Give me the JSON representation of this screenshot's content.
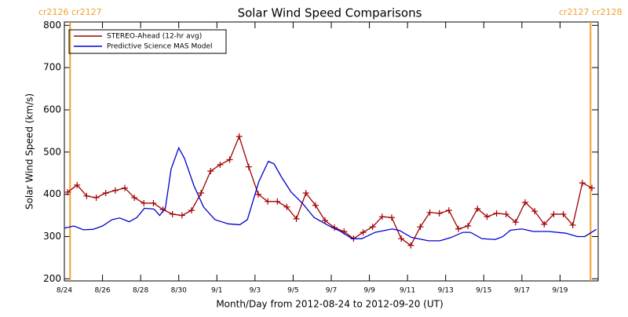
{
  "chart_data": {
    "type": "line",
    "title": "Solar Wind Speed Comparisons",
    "xlabel": "Month/Day from 2012-08-24 to 2012-09-20 (UT)",
    "ylabel": "Solar Wind Speed (km/s)",
    "xlim": [
      0,
      28
    ],
    "ylim": [
      195,
      808
    ],
    "xticks": [
      {
        "value": 0,
        "label": "8/24"
      },
      {
        "value": 2,
        "label": "8/26"
      },
      {
        "value": 4,
        "label": "8/28"
      },
      {
        "value": 6,
        "label": "8/30"
      },
      {
        "value": 8,
        "label": "9/1"
      },
      {
        "value": 10,
        "label": "9/3"
      },
      {
        "value": 12,
        "label": "9/5"
      },
      {
        "value": 14,
        "label": "9/7"
      },
      {
        "value": 16,
        "label": "9/9"
      },
      {
        "value": 18,
        "label": "9/11"
      },
      {
        "value": 20,
        "label": "9/13"
      },
      {
        "value": 22,
        "label": "9/15"
      },
      {
        "value": 24,
        "label": "9/17"
      },
      {
        "value": 26,
        "label": "9/19"
      }
    ],
    "yticks": [
      200,
      300,
      400,
      500,
      600,
      700,
      800
    ],
    "legend": "upper left",
    "annotations": [
      {
        "text": "cr2126 cr2127",
        "x": 0.3,
        "color": "#f0a030"
      },
      {
        "text": "cr2127 cr2128",
        "x": 27.6,
        "color": "#f0a030"
      }
    ],
    "series": [
      {
        "name": "STEREO-Ahead (12-hr avg)",
        "color": "#a00000",
        "markers": true,
        "x": [
          0.17,
          0.67,
          1.17,
          1.67,
          2.17,
          2.67,
          3.17,
          3.67,
          4.17,
          4.67,
          5.17,
          5.67,
          6.17,
          6.67,
          7.17,
          7.67,
          8.17,
          8.67,
          9.17,
          9.67,
          10.17,
          10.67,
          11.17,
          11.67,
          12.17,
          12.67,
          13.17,
          13.67,
          14.17,
          14.67,
          15.17,
          15.67,
          16.17,
          16.67,
          17.17,
          17.67,
          18.17,
          18.67,
          19.17,
          19.67,
          20.17,
          20.67,
          21.17,
          21.67,
          22.17,
          22.67,
          23.17,
          23.67,
          24.17,
          24.67,
          25.17,
          25.67,
          26.17,
          26.67,
          27.17,
          27.67
        ],
        "values": [
          405,
          422,
          396,
          392,
          403,
          409,
          415,
          392,
          379,
          379,
          364,
          353,
          350,
          362,
          403,
          455,
          470,
          482,
          537,
          465,
          400,
          383,
          383,
          370,
          342,
          403,
          374,
          338,
          321,
          312,
          295,
          310,
          323,
          347,
          345,
          295,
          279,
          323,
          357,
          355,
          362,
          318,
          325,
          366,
          347,
          355,
          353,
          334,
          381,
          360,
          329,
          353,
          353,
          327,
          427,
          415
        ]
      },
      {
        "name": "Predictive Science MAS Model",
        "color": "#0000d0",
        "markers": false,
        "x": [
          0,
          0.5,
          1.0,
          1.5,
          2.0,
          2.5,
          2.9,
          3.4,
          3.8,
          4.2,
          4.7,
          5.0,
          5.3,
          5.6,
          6.0,
          6.3,
          6.8,
          7.3,
          7.9,
          8.6,
          9.2,
          9.6,
          10.2,
          10.7,
          11.0,
          11.4,
          11.9,
          12.5,
          13.1,
          13.9,
          14.5,
          15.1,
          15.6,
          16.3,
          17.2,
          17.6,
          18.2,
          19.1,
          19.7,
          20.3,
          20.9,
          21.3,
          21.9,
          22.6,
          23.0,
          23.4,
          24.0,
          24.6,
          25.4,
          26.3,
          26.9,
          27.3,
          27.9
        ],
        "values": [
          320,
          325,
          316,
          317,
          325,
          340,
          344,
          335,
          345,
          367,
          365,
          350,
          368,
          460,
          510,
          485,
          420,
          370,
          340,
          330,
          328,
          340,
          430,
          478,
          472,
          440,
          405,
          378,
          345,
          325,
          312,
          295,
          295,
          310,
          318,
          314,
          298,
          290,
          290,
          298,
          310,
          310,
          295,
          293,
          300,
          315,
          318,
          312,
          312,
          308,
          300,
          300,
          317
        ]
      }
    ]
  }
}
